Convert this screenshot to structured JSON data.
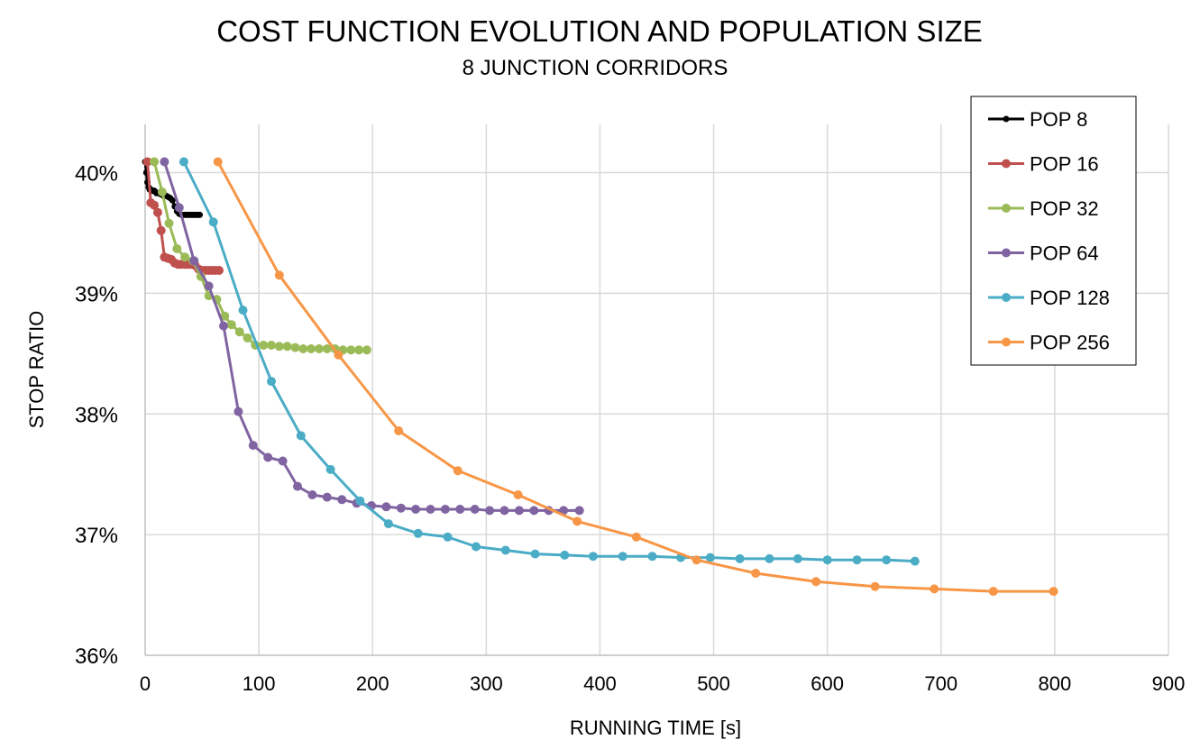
{
  "chart_data": {
    "type": "line",
    "title": "COST FUNCTION EVOLUTION AND POPULATION SIZE",
    "subtitle": "8 JUNCTION CORRIDORS",
    "xlabel": "RUNNING TIME [s]",
    "ylabel": "STOP RATIO",
    "xlim": [
      0,
      900
    ],
    "ylim": [
      36,
      40.4
    ],
    "x_ticks": [
      0,
      100,
      200,
      300,
      400,
      500,
      600,
      700,
      800,
      900
    ],
    "y_ticks": [
      36,
      37,
      38,
      39,
      40
    ],
    "y_tick_labels": [
      "36%",
      "37%",
      "38%",
      "39%",
      "40%"
    ],
    "grid": true,
    "legend_position": "top-right",
    "series": [
      {
        "name": "POP 8",
        "color": "#000000",
        "x": [
          0,
          1,
          2,
          3,
          4,
          5,
          6,
          7,
          8,
          9,
          10,
          12,
          14,
          16,
          18,
          20,
          22,
          24,
          26,
          28,
          30,
          32,
          34,
          36,
          38,
          40,
          42,
          44,
          46,
          48
        ],
        "y": [
          40.09,
          40.0,
          39.92,
          39.88,
          39.86,
          39.86,
          39.85,
          39.85,
          39.85,
          39.84,
          39.83,
          39.83,
          39.82,
          39.81,
          39.81,
          39.8,
          39.79,
          39.77,
          39.72,
          39.68,
          39.66,
          39.65,
          39.65,
          39.65,
          39.65,
          39.65,
          39.65,
          39.65,
          39.65,
          39.65
        ]
      },
      {
        "name": "POP 16",
        "color": "#c0504d",
        "x": [
          2,
          5,
          8,
          11,
          14,
          17,
          20,
          23,
          26,
          29,
          32,
          35,
          38,
          41,
          44,
          47,
          50,
          53,
          56,
          59,
          62,
          65
        ],
        "y": [
          40.09,
          39.75,
          39.73,
          39.67,
          39.52,
          39.3,
          39.29,
          39.28,
          39.25,
          39.24,
          39.24,
          39.24,
          39.24,
          39.24,
          39.23,
          39.2,
          39.19,
          39.19,
          39.19,
          39.19,
          39.19,
          39.19
        ]
      },
      {
        "name": "POP 32",
        "color": "#9bbb59",
        "x": [
          8,
          15,
          21,
          28,
          35,
          42,
          49,
          56,
          63,
          70,
          76,
          83,
          90,
          97,
          104,
          111,
          118,
          125,
          132,
          139,
          146,
          153,
          160,
          167,
          174,
          181,
          188,
          195
        ],
        "y": [
          40.09,
          39.84,
          39.58,
          39.37,
          39.3,
          39.27,
          39.14,
          38.98,
          38.95,
          38.81,
          38.74,
          38.68,
          38.63,
          38.57,
          38.57,
          38.57,
          38.56,
          38.56,
          38.55,
          38.54,
          38.54,
          38.54,
          38.54,
          38.54,
          38.53,
          38.53,
          38.53,
          38.53
        ]
      },
      {
        "name": "POP 64",
        "color": "#8064a2",
        "x": [
          17,
          30,
          43,
          56,
          69,
          82,
          95,
          108,
          121,
          134,
          147,
          160,
          173,
          186,
          199,
          212,
          225,
          238,
          251,
          264,
          277,
          290,
          303,
          316,
          329,
          342,
          355,
          368,
          382
        ],
        "y": [
          40.09,
          39.71,
          39.27,
          39.06,
          38.73,
          38.02,
          37.74,
          37.64,
          37.61,
          37.4,
          37.33,
          37.31,
          37.29,
          37.26,
          37.24,
          37.23,
          37.22,
          37.21,
          37.21,
          37.21,
          37.21,
          37.21,
          37.2,
          37.2,
          37.2,
          37.2,
          37.2,
          37.2,
          37.2
        ]
      },
      {
        "name": "POP 128",
        "color": "#4bacc6",
        "x": [
          34,
          60,
          86,
          111,
          137,
          163,
          189,
          214,
          240,
          266,
          291,
          317,
          343,
          369,
          394,
          420,
          446,
          471,
          497,
          523,
          549,
          574,
          600,
          626,
          652,
          677
        ],
        "y": [
          40.09,
          39.59,
          38.86,
          38.27,
          37.82,
          37.54,
          37.28,
          37.09,
          37.01,
          36.98,
          36.9,
          36.87,
          36.84,
          36.83,
          36.82,
          36.82,
          36.82,
          36.81,
          36.81,
          36.8,
          36.8,
          36.8,
          36.79,
          36.79,
          36.79,
          36.78
        ]
      },
      {
        "name": "POP 256",
        "color": "#f79646",
        "x": [
          64,
          118,
          170,
          223,
          275,
          328,
          380,
          432,
          485,
          537,
          590,
          642,
          694,
          746,
          799
        ],
        "y": [
          40.09,
          39.15,
          38.49,
          37.86,
          37.53,
          37.33,
          37.11,
          36.98,
          36.79,
          36.68,
          36.61,
          36.57,
          36.55,
          36.53,
          36.53
        ]
      }
    ]
  }
}
